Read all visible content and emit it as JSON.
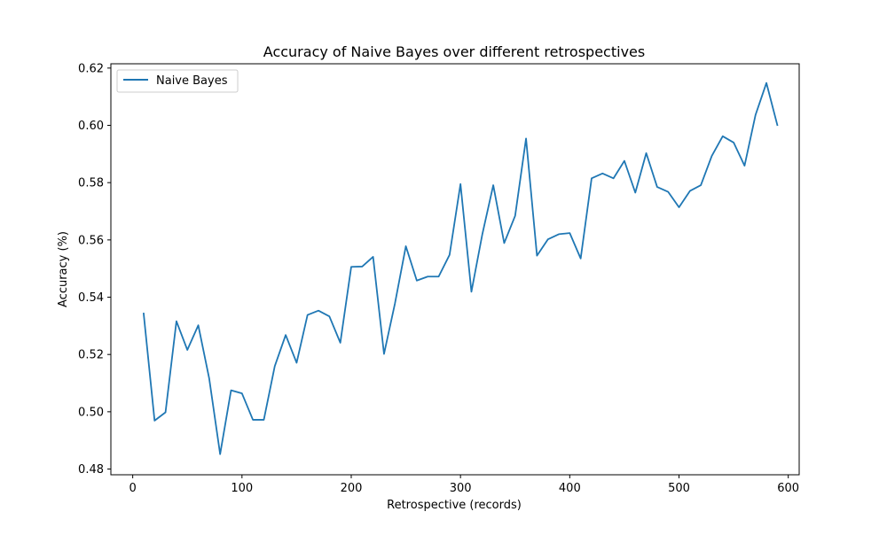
{
  "chart_data": {
    "type": "line",
    "title": "Accuracy of Naive Bayes over different retrospectives",
    "xlabel": "Retrospective (records)",
    "ylabel": "Accuracy (%)",
    "xlim": [
      -20,
      610
    ],
    "ylim": [
      0.478,
      0.6215
    ],
    "xticks": [
      0,
      100,
      200,
      300,
      400,
      500,
      600
    ],
    "xtick_labels": [
      "0",
      "100",
      "200",
      "300",
      "400",
      "500",
      "600"
    ],
    "yticks": [
      0.48,
      0.5,
      0.52,
      0.54,
      0.56,
      0.58,
      0.6,
      0.62
    ],
    "ytick_labels": [
      "0.48",
      "0.50",
      "0.52",
      "0.54",
      "0.56",
      "0.58",
      "0.60",
      "0.62"
    ],
    "grid": false,
    "legend_position": "top-left",
    "series": [
      {
        "name": "Naive Bayes",
        "color": "#1f77b4",
        "x": [
          10,
          20,
          30,
          40,
          50,
          60,
          70,
          80,
          90,
          100,
          110,
          120,
          130,
          140,
          150,
          160,
          170,
          180,
          190,
          200,
          210,
          220,
          230,
          240,
          250,
          260,
          270,
          280,
          290,
          300,
          310,
          320,
          330,
          340,
          350,
          360,
          370,
          380,
          390,
          400,
          410,
          420,
          430,
          440,
          450,
          460,
          470,
          480,
          490,
          500,
          510,
          520,
          530,
          540,
          550,
          560,
          570,
          580,
          590
        ],
        "y": [
          0.5343,
          0.4969,
          0.4998,
          0.5316,
          0.5216,
          0.5302,
          0.5116,
          0.4852,
          0.5075,
          0.5064,
          0.4972,
          0.4972,
          0.5159,
          0.5268,
          0.5171,
          0.5338,
          0.5353,
          0.5333,
          0.5241,
          0.5506,
          0.5507,
          0.5541,
          0.5202,
          0.5378,
          0.5578,
          0.5458,
          0.5472,
          0.5472,
          0.5548,
          0.5795,
          0.5419,
          0.562,
          0.5791,
          0.5589,
          0.5684,
          0.5954,
          0.5545,
          0.5602,
          0.562,
          0.5624,
          0.5535,
          0.5815,
          0.5832,
          0.5815,
          0.5876,
          0.5765,
          0.5903,
          0.5785,
          0.5768,
          0.5714,
          0.5771,
          0.5791,
          0.5893,
          0.5962,
          0.594,
          0.5859,
          0.6036,
          0.6148,
          0.6001
        ]
      }
    ]
  }
}
